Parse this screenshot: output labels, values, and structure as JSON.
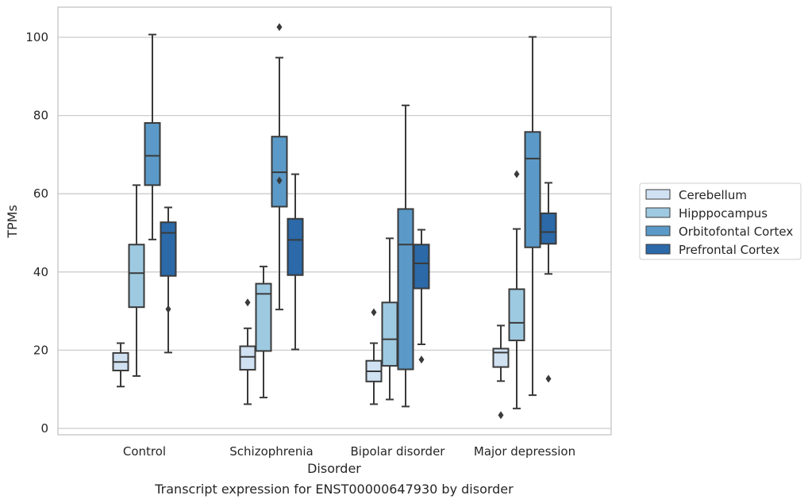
{
  "chart_data": {
    "type": "box",
    "caption": "Transcript expression for ENST00000647930 by disorder",
    "xlabel": "Disorder",
    "ylabel": "TPMs",
    "ylim": [
      -2,
      108
    ],
    "yticks": [
      0,
      20,
      40,
      60,
      80,
      100
    ],
    "grid": "horizontal",
    "legend_position": "right",
    "categories": [
      "Control",
      "Schizophrenia",
      "Bipolar disorder",
      "Major depression"
    ],
    "series": [
      {
        "name": "Cerebellum",
        "color": "#d0e1f2",
        "boxes": [
          {
            "whisker_low": 10.7,
            "q1": 14.8,
            "median": 17.0,
            "q3": 19.3,
            "whisker_high": 21.8,
            "outliers": []
          },
          {
            "whisker_low": 6.2,
            "q1": 15.0,
            "median": 18.3,
            "q3": 21.0,
            "whisker_high": 25.6,
            "outliers": [
              32.2
            ]
          },
          {
            "whisker_low": 6.2,
            "q1": 12.0,
            "median": 14.6,
            "q3": 17.3,
            "whisker_high": 21.8,
            "outliers": [
              29.7
            ]
          },
          {
            "whisker_low": 12.1,
            "q1": 15.7,
            "median": 19.4,
            "q3": 20.4,
            "whisker_high": 26.3,
            "outliers": [
              3.4
            ]
          }
        ]
      },
      {
        "name": "Hipppocampus",
        "color": "#9ecae1",
        "boxes": [
          {
            "whisker_low": 13.4,
            "q1": 31.0,
            "median": 39.7,
            "q3": 47.0,
            "whisker_high": 62.2,
            "outliers": []
          },
          {
            "whisker_low": 7.9,
            "q1": 19.8,
            "median": 34.4,
            "q3": 37.0,
            "whisker_high": 41.4,
            "outliers": []
          },
          {
            "whisker_low": 7.4,
            "q1": 16.0,
            "median": 22.8,
            "q3": 32.2,
            "whisker_high": 48.6,
            "outliers": []
          },
          {
            "whisker_low": 5.1,
            "q1": 22.5,
            "median": 27.0,
            "q3": 35.6,
            "whisker_high": 51.0,
            "outliers": [
              65.0
            ]
          }
        ]
      },
      {
        "name": "Orbitofontal Cortex",
        "color": "#5b9ac8",
        "boxes": [
          {
            "whisker_low": 48.3,
            "q1": 62.2,
            "median": 69.7,
            "q3": 78.1,
            "whisker_high": 100.7,
            "outliers": []
          },
          {
            "whisker_low": 30.4,
            "q1": 56.7,
            "median": 65.5,
            "q3": 74.6,
            "whisker_high": 94.8,
            "outliers": [
              63.4,
              102.6
            ]
          },
          {
            "whisker_low": 5.6,
            "q1": 15.1,
            "median": 47.0,
            "q3": 56.1,
            "whisker_high": 82.6,
            "outliers": []
          },
          {
            "whisker_low": 8.5,
            "q1": 46.3,
            "median": 69.0,
            "q3": 75.8,
            "whisker_high": 100.1,
            "outliers": []
          }
        ]
      },
      {
        "name": "Prefrontal Cortex",
        "color": "#2b69a8",
        "boxes": [
          {
            "whisker_low": 19.4,
            "q1": 39.0,
            "median": 50.0,
            "q3": 52.7,
            "whisker_high": 56.5,
            "outliers": [
              30.5
            ]
          },
          {
            "whisker_low": 20.2,
            "q1": 39.2,
            "median": 48.2,
            "q3": 53.6,
            "whisker_high": 65.0,
            "outliers": []
          },
          {
            "whisker_low": 21.5,
            "q1": 35.8,
            "median": 42.2,
            "q3": 47.0,
            "whisker_high": 50.8,
            "outliers": [
              17.6
            ]
          },
          {
            "whisker_low": 39.5,
            "q1": 47.2,
            "median": 50.2,
            "q3": 55.0,
            "whisker_high": 62.8,
            "outliers": [
              12.7
            ]
          }
        ]
      }
    ]
  }
}
